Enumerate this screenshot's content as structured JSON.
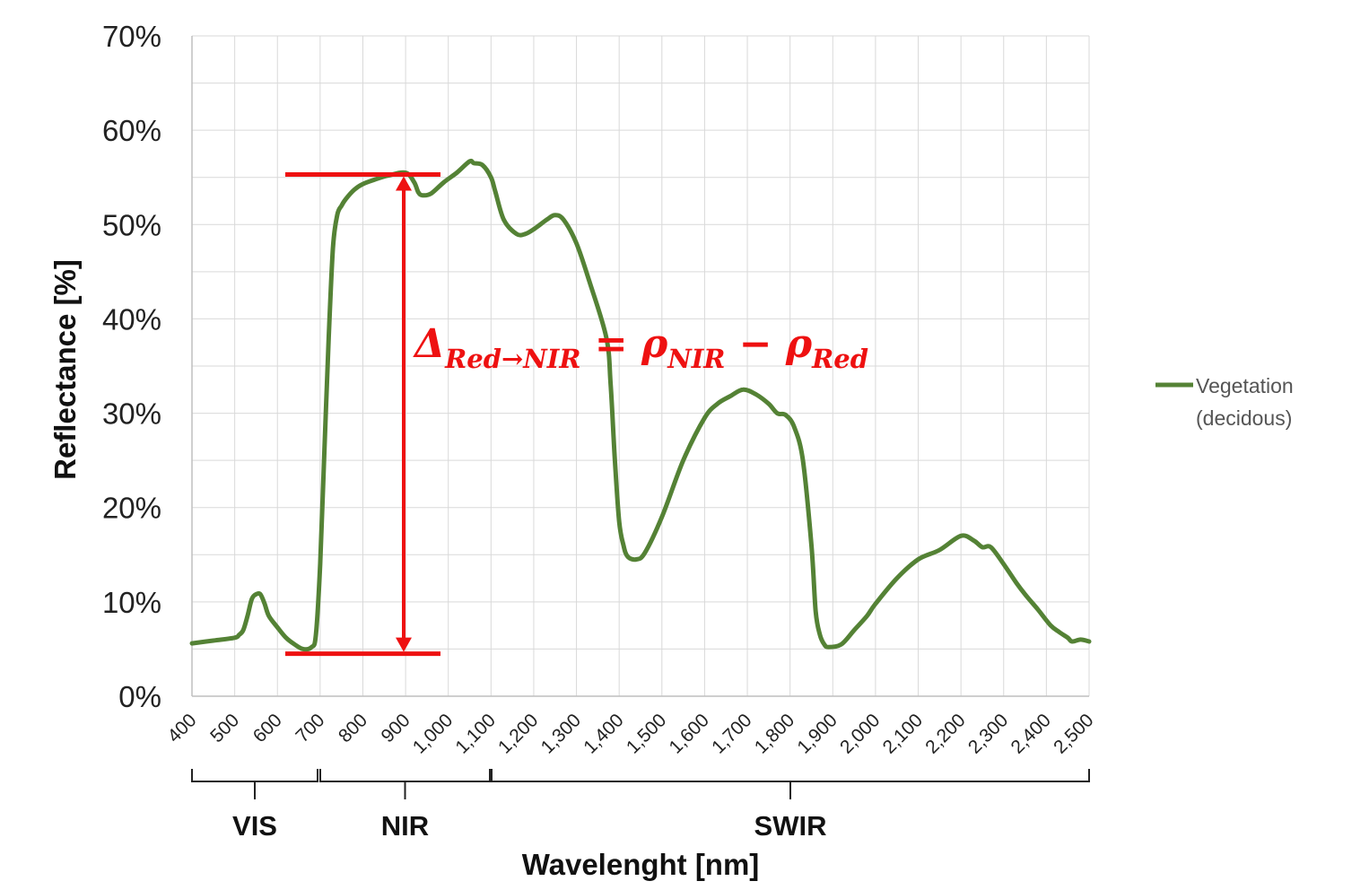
{
  "chart_data": {
    "type": "line",
    "xlabel": "Wavelenght [nm]",
    "ylabel": "Reflectance [%]",
    "xlim": [
      400,
      2500
    ],
    "ylim": [
      0,
      0.7
    ],
    "grid": true,
    "legend_position": "right",
    "x_ticks": [
      "400",
      "500",
      "600",
      "700",
      "800",
      "900",
      "1,000",
      "1,100",
      "1,200",
      "1,300",
      "1,400",
      "1,500",
      "1,600",
      "1,700",
      "1,800",
      "1,900",
      "2,000",
      "2,100",
      "2,200",
      "2,300",
      "2,400",
      "2,500"
    ],
    "y_ticks": [
      "0%",
      "10%",
      "20%",
      "30%",
      "40%",
      "50%",
      "60%",
      "70%"
    ],
    "series": [
      {
        "name": "Vegetation\n(decidous)",
        "name_lines": [
          "Vegetation",
          "(decidous)"
        ],
        "color": "#548235",
        "x": [
          400,
          450,
          500,
          510,
          520,
          530,
          540,
          550,
          560,
          570,
          580,
          600,
          620,
          640,
          660,
          680,
          690,
          700,
          710,
          720,
          730,
          740,
          750,
          760,
          780,
          800,
          830,
          860,
          900,
          920,
          930,
          940,
          960,
          990,
          1020,
          1050,
          1060,
          1080,
          1100,
          1110,
          1130,
          1160,
          1180,
          1200,
          1230,
          1250,
          1270,
          1300,
          1330,
          1370,
          1380,
          1390,
          1400,
          1410,
          1420,
          1440,
          1460,
          1500,
          1550,
          1600,
          1630,
          1660,
          1690,
          1720,
          1750,
          1770,
          1790,
          1810,
          1830,
          1850,
          1860,
          1870,
          1880,
          1890,
          1920,
          1950,
          1980,
          2000,
          2050,
          2100,
          2150,
          2200,
          2230,
          2250,
          2270,
          2300,
          2330,
          2350,
          2380,
          2410,
          2430,
          2450,
          2460,
          2480,
          2500
        ],
        "y": [
          0.056,
          0.059,
          0.062,
          0.065,
          0.07,
          0.085,
          0.103,
          0.108,
          0.108,
          0.098,
          0.085,
          0.073,
          0.062,
          0.055,
          0.05,
          0.052,
          0.065,
          0.14,
          0.26,
          0.38,
          0.475,
          0.51,
          0.52,
          0.527,
          0.537,
          0.543,
          0.548,
          0.552,
          0.555,
          0.545,
          0.534,
          0.531,
          0.533,
          0.545,
          0.555,
          0.567,
          0.565,
          0.563,
          0.55,
          0.535,
          0.505,
          0.49,
          0.49,
          0.495,
          0.505,
          0.51,
          0.505,
          0.48,
          0.44,
          0.38,
          0.33,
          0.25,
          0.185,
          0.16,
          0.148,
          0.145,
          0.152,
          0.19,
          0.25,
          0.295,
          0.31,
          0.318,
          0.325,
          0.32,
          0.31,
          0.3,
          0.298,
          0.285,
          0.25,
          0.16,
          0.09,
          0.065,
          0.055,
          0.052,
          0.055,
          0.07,
          0.085,
          0.098,
          0.125,
          0.145,
          0.155,
          0.17,
          0.165,
          0.158,
          0.158,
          0.14,
          0.12,
          0.108,
          0.092,
          0.075,
          0.068,
          0.062,
          0.058,
          0.06,
          0.058
        ]
      }
    ],
    "annotations": {
      "formula": {
        "delta": "Δ",
        "delta_sub": "Red→NIR",
        "equals": " = ρ",
        "nir_sub": "NIR",
        "minus": " − ρ",
        "red_sub": "Red"
      },
      "nir_reflectance": 0.553,
      "red_reflectance": 0.045,
      "annotation_color": "#ee1111"
    },
    "regions": [
      {
        "label": "VIS",
        "from": 400,
        "to": 700
      },
      {
        "label": "NIR",
        "from": 700,
        "to": 1100
      },
      {
        "label": "SWIR",
        "from": 1100,
        "to": 2500
      }
    ]
  }
}
